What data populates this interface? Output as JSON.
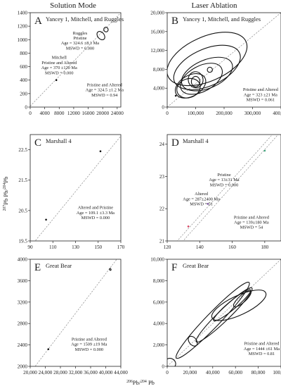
{
  "header": {
    "left_title": "Solution Mode",
    "right_title": "Laser Ablation"
  },
  "axis_labels": {
    "y_pre": "Pb",
    "y_sup1": "207",
    "y_mid": " Pb/",
    "y_sup2": "204",
    "x_pre": "Pb/",
    "x_sup1": "206",
    "x_sup2": "204",
    "x_post": " Pb"
  },
  "chart_data": [
    {
      "id": "A",
      "type": "scatter",
      "title": "Yancey 1, Mitchell, and Ruggles",
      "xlim": [
        0,
        25000
      ],
      "ylim": [
        0,
        1400
      ],
      "xticks": [
        0,
        4000,
        8000,
        12000,
        16000,
        20000,
        24000
      ],
      "xtick_labels": [
        "0",
        "4000",
        "8000",
        "12000",
        "16000",
        "20000",
        "24000"
      ],
      "yticks": [
        0,
        200,
        400,
        600,
        800,
        1000,
        1200,
        1400
      ],
      "ytick_labels": [
        "0",
        "200",
        "400",
        "600",
        "800",
        "1000",
        "1200",
        "1400"
      ],
      "ref_line": [
        [
          0,
          15
        ],
        [
          25000,
          1400
        ]
      ],
      "ellipses": [
        {
          "cx": 19500,
          "cy": 1060,
          "rx": 900,
          "ry": 70,
          "angle": -40
        },
        {
          "cx": 20900,
          "cy": 1150,
          "rx": 600,
          "ry": 35,
          "angle": -25
        }
      ],
      "points": [
        {
          "x": 7200,
          "y": 400
        }
      ],
      "annotations": [
        {
          "lines": [
            "Ruggles",
            "Pristine",
            "Age = 324.6 ±8.1 Ma",
            "MSWD = 0.000"
          ],
          "ax": 0.55,
          "ay": 0.23
        },
        {
          "lines": [
            "Mitchell",
            "Pristine and Altered",
            "Age = 370 ±120 Ma",
            "MSWD = 0.000"
          ],
          "ax": 0.32,
          "ay": 0.49
        },
        {
          "lines": [
            "Pristine and Altered",
            "Age = 324.5 ±1.2 Ma",
            "MSWD = 0.94"
          ],
          "ax": 0.82,
          "ay": 0.78
        }
      ]
    },
    {
      "id": "B",
      "type": "scatter",
      "title": "Yancey 1, Mitchell, and Ruggles",
      "xlim": [
        0,
        400000
      ],
      "ylim": [
        0,
        20000
      ],
      "xticks": [
        0,
        100000,
        200000,
        300000,
        400000
      ],
      "xtick_labels": [
        "0",
        "100,000",
        "200,000",
        "300,000",
        "400,000"
      ],
      "yticks": [
        0,
        4000,
        8000,
        12000,
        16000,
        20000
      ],
      "ytick_labels": [
        "0",
        "4,000",
        "8,000",
        "12,000",
        "16,000",
        "20,000"
      ],
      "ref_line": [
        [
          0,
          0
        ],
        [
          400000,
          20000
        ]
      ],
      "ellipses": [
        {
          "cx": 140000,
          "cy": 10200,
          "rx": 150000,
          "ry": 4700,
          "angle": -24
        },
        {
          "cx": 140000,
          "cy": 8400,
          "rx": 125000,
          "ry": 3900,
          "angle": -24
        },
        {
          "cx": 140000,
          "cy": 7000,
          "rx": 95000,
          "ry": 3000,
          "angle": -23
        },
        {
          "cx": 120000,
          "cy": 6000,
          "rx": 80000,
          "ry": 2700,
          "angle": -28
        },
        {
          "cx": 82000,
          "cy": 4500,
          "rx": 58000,
          "ry": 2200,
          "angle": -30
        },
        {
          "cx": 75000,
          "cy": 4000,
          "rx": 42000,
          "ry": 2000,
          "angle": -20
        },
        {
          "cx": 100000,
          "cy": 5800,
          "rx": 26000,
          "ry": 1700,
          "angle": -10
        },
        {
          "cx": 100000,
          "cy": 5400,
          "rx": 15000,
          "ry": 1100,
          "angle": 0
        },
        {
          "cx": 150000,
          "cy": 7900,
          "rx": 9000,
          "ry": 550,
          "angle": 0
        }
      ],
      "points": [
        {
          "x": 30000,
          "y": 2400
        }
      ],
      "annotations": [
        {
          "lines": [
            "Pristine and Altered",
            "Age = 323 ±21 Ma",
            "MSWD = 0.061"
          ],
          "ax": 0.82,
          "ay": 0.83
        }
      ]
    },
    {
      "id": "C",
      "type": "scatter",
      "title": "Marshall 4",
      "xlim": [
        90,
        170
      ],
      "ylim": [
        19.5,
        23.0
      ],
      "xticks": [
        90,
        110,
        130,
        150,
        170
      ],
      "xtick_labels": [
        "90",
        "110",
        "130",
        "150",
        "170"
      ],
      "yticks": [
        19.5,
        20.5,
        21.5,
        22.5
      ],
      "ytick_labels": [
        "19.5",
        "20.5",
        "21.5",
        "22.5"
      ],
      "ref_line": [
        [
          90,
          19.3
        ],
        [
          170,
          22.95
        ]
      ],
      "ellipses": [],
      "points": [
        {
          "x": 104,
          "y": 20.2
        },
        {
          "x": 152,
          "y": 22.45
        }
      ],
      "annotations": [
        {
          "lines": [
            "Altered and Pristine",
            "Age = 109.1 ±3.3 Ma",
            "MSWD = 0.000"
          ],
          "ax": 0.72,
          "ay": 0.7
        }
      ]
    },
    {
      "id": "D",
      "type": "scatter",
      "title": "Marshall 4",
      "xlim": [
        120,
        190
      ],
      "ylim": [
        21,
        24.3
      ],
      "xticks": [
        120,
        140,
        160,
        180
      ],
      "xtick_labels": [
        "120",
        "140",
        "160",
        "180"
      ],
      "yticks": [
        21,
        22,
        23,
        24
      ],
      "ytick_labels": [
        "21",
        "22",
        "23",
        "24"
      ],
      "ref_lines": [
        [
          [
            120,
            20.45
          ],
          [
            190,
            24.4
          ]
        ],
        [
          [
            120,
            20.65
          ],
          [
            190,
            24.6
          ]
        ]
      ],
      "ellipses": [],
      "points": [
        {
          "x": 133,
          "y": 21.45,
          "color": "#d63a5a"
        },
        {
          "x": 145,
          "y": 22.15,
          "color": "#7a4fa0"
        },
        {
          "x": 180,
          "y": 23.8,
          "color": "#3aa37a"
        }
      ],
      "annotations": [
        {
          "lines": [
            "Pristine",
            "Age = 13±31 Ma",
            "MSWD = 0.000"
          ],
          "ax": 0.5,
          "ay": 0.39
        },
        {
          "lines": [
            "Altered",
            "Age = 287±2400 Ma",
            "MSWD = 51"
          ],
          "ax": 0.3,
          "ay": 0.57
        },
        {
          "lines": [
            "Pristine and Altered",
            "Age = 139±180 Ma",
            "MSWD = 54"
          ],
          "ax": 0.74,
          "ay": 0.79
        }
      ]
    },
    {
      "id": "E",
      "type": "scatter",
      "title": "Great Bear",
      "xlim": [
        20000,
        44000
      ],
      "ylim": [
        2000,
        4000
      ],
      "xticks": [
        20000,
        24000,
        28000,
        32000,
        36000,
        40000,
        44000
      ],
      "xtick_labels": [
        "20,000",
        "24,000",
        "28,000",
        "32,000",
        "36,000",
        "40,000",
        "44,000"
      ],
      "yticks": [
        2000,
        2400,
        2800,
        3200,
        3600,
        4000
      ],
      "ytick_labels": [
        "2000",
        "2400",
        "2800",
        "3200",
        "3600",
        "4000"
      ],
      "ref_line": [
        [
          20000,
          1880
        ],
        [
          44000,
          4100
        ]
      ],
      "ellipses": [
        {
          "cx": 41200,
          "cy": 3810,
          "rx": 190,
          "ry": 18,
          "angle": -35
        }
      ],
      "points": [
        {
          "x": 24800,
          "y": 2320
        }
      ],
      "annotations": [
        {
          "lines": [
            "Pristine and Altered",
            "Age = 1509 ±19 Ma",
            "MSWD = 0.000"
          ],
          "ax": 0.65,
          "ay": 0.76
        }
      ]
    },
    {
      "id": "F",
      "type": "scatter",
      "title": "Great Bear",
      "xlim": [
        0,
        100000
      ],
      "ylim": [
        0,
        10000
      ],
      "xticks": [
        0,
        20000,
        40000,
        60000,
        80000,
        100000
      ],
      "xtick_labels": [
        "0",
        "20,000",
        "40,000",
        "60,000",
        "80,000",
        "100,000"
      ],
      "yticks": [
        0,
        2000,
        4000,
        6000,
        8000,
        10000
      ],
      "ytick_labels": [
        "0",
        "2,000",
        "4,000",
        "6,000",
        "8,000",
        "10,000"
      ],
      "ref_line": [
        [
          0,
          0
        ],
        [
          100000,
          10000
        ]
      ],
      "ellipses": [
        {
          "cx": 40000,
          "cy": 4300,
          "rx": 46000,
          "ry": 650,
          "angle": -46
        },
        {
          "cx": 50000,
          "cy": 4800,
          "rx": 34000,
          "ry": 520,
          "angle": -44
        },
        {
          "cx": 57000,
          "cy": 5700,
          "rx": 21000,
          "ry": 380,
          "angle": -40
        },
        {
          "cx": 63000,
          "cy": 5700,
          "rx": 26000,
          "ry": 900,
          "angle": -25
        },
        {
          "cx": 66000,
          "cy": 6300,
          "rx": 10000,
          "ry": 330,
          "angle": -42
        },
        {
          "cx": 3000,
          "cy": 300,
          "rx": 4000,
          "ry": 500,
          "angle": -55
        },
        {
          "cx": 22500,
          "cy": 2350,
          "rx": 3200,
          "ry": 520,
          "angle": -40
        }
      ],
      "points": [],
      "annotations": [
        {
          "lines": [
            "Pristine and Altered",
            "Age = 1444 ±61 Ma",
            "MSWD = 0.81"
          ],
          "ax": 0.83,
          "ay": 0.8
        }
      ]
    }
  ]
}
